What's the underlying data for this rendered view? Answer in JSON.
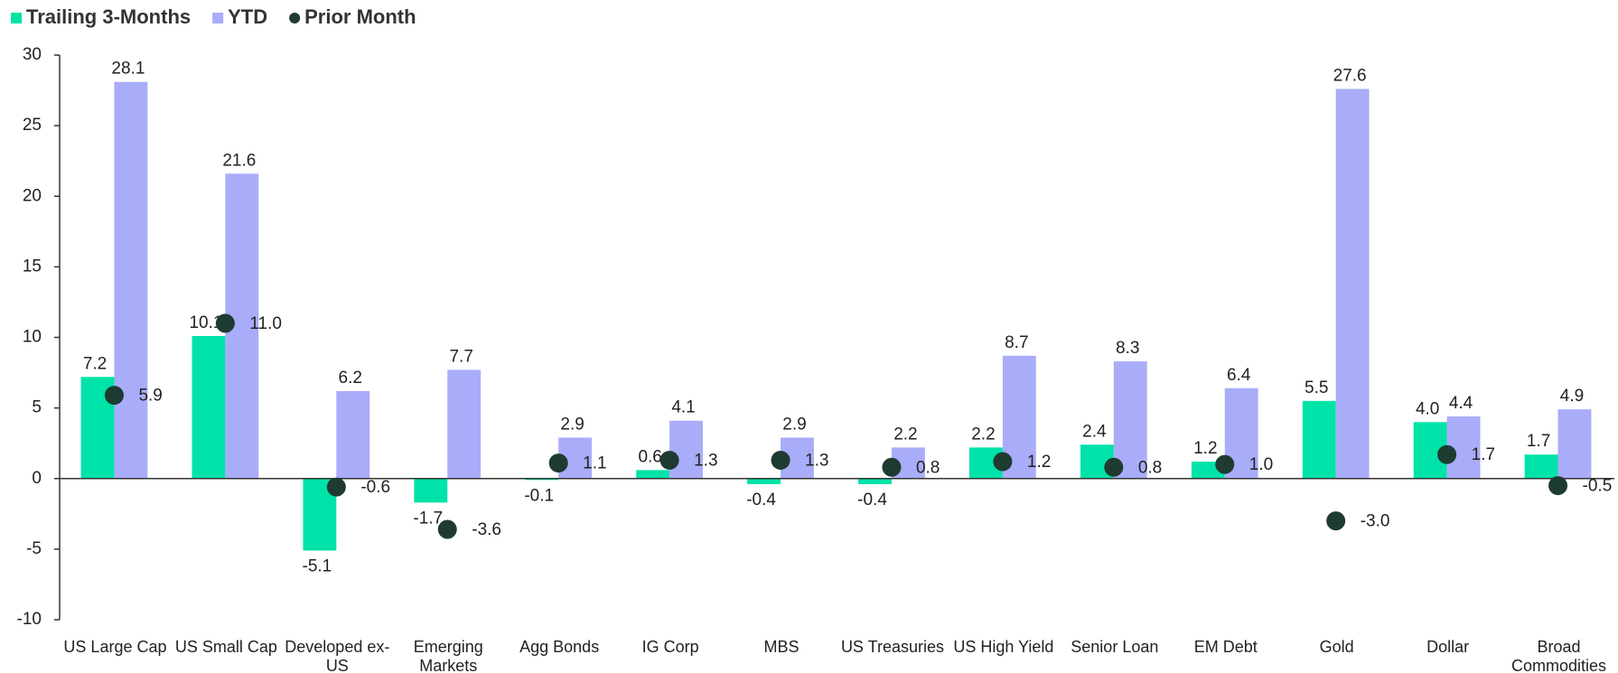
{
  "chart_data": {
    "type": "bar",
    "categories": [
      "US Large Cap",
      "US Small Cap",
      "Developed ex-US",
      "Emerging Markets",
      "Agg Bonds",
      "IG Corp",
      "MBS",
      "US Treasuries",
      "US High Yield",
      "Senior Loan",
      "EM Debt",
      "Gold",
      "Dollar",
      "Broad Commodities"
    ],
    "series": [
      {
        "name": "Trailing 3-Months",
        "type": "bar",
        "color": "#00e3a8",
        "values": [
          7.2,
          10.1,
          -5.1,
          -1.7,
          -0.1,
          0.6,
          -0.4,
          -0.4,
          2.2,
          2.4,
          1.2,
          5.5,
          4.0,
          1.7
        ],
        "value_labels": [
          "7.2",
          "10.1",
          "-5.1",
          "-1.7",
          "-0.1",
          "0.6",
          "-0.4",
          "-0.4",
          "2.2",
          "2.4",
          "1.2",
          "5.5",
          "4.0",
          "1.7"
        ]
      },
      {
        "name": "YTD",
        "type": "bar",
        "color": "#a9acf8",
        "values": [
          28.1,
          21.6,
          6.2,
          7.7,
          2.9,
          4.1,
          2.9,
          2.2,
          8.7,
          8.3,
          6.4,
          27.6,
          4.4,
          4.9
        ],
        "value_labels": [
          "28.1",
          "21.6",
          "6.2",
          "7.7",
          "2.9",
          "4.1",
          "2.9",
          "2.2",
          "8.7",
          "8.3",
          "6.4",
          "27.6",
          "4.4",
          "4.9"
        ]
      },
      {
        "name": "Prior Month",
        "type": "scatter",
        "color": "#1e3b31",
        "values": [
          5.9,
          11.0,
          -0.6,
          -3.6,
          1.1,
          1.3,
          1.3,
          0.8,
          1.2,
          0.8,
          1.0,
          -3.0,
          1.7,
          -0.5
        ],
        "value_labels": [
          "5.9",
          "11.0",
          "-0.6",
          "-3.6",
          "1.1",
          "1.3",
          "1.3",
          "0.8",
          "1.2",
          "0.8",
          "1.0",
          "-3.0",
          "1.7",
          "-0.5"
        ]
      }
    ],
    "ylim": [
      -10,
      30
    ],
    "yticks": [
      -10,
      -5,
      0,
      5,
      10,
      15,
      20,
      25,
      30
    ],
    "legend": "top-left"
  }
}
